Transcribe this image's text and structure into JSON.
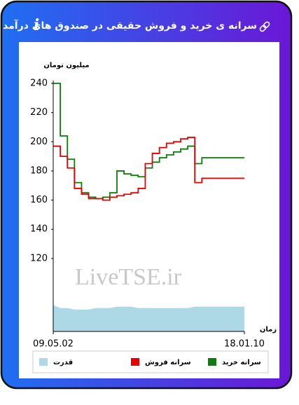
{
  "chart_data": {
    "type": "line",
    "title": "سرانه ی خرید و فروش حقیقی در صندوق های درآمد ثابت",
    "y_label": "میلیون تومان",
    "x_label": "زمان",
    "watermark": "LiveTSE.ir",
    "categories": [
      "09.05.02",
      null,
      null,
      null,
      null,
      null,
      null,
      null,
      null,
      null,
      null,
      null,
      null,
      null,
      null,
      null,
      null,
      null,
      null,
      null,
      null,
      null,
      null,
      null,
      null,
      null,
      null,
      "18.01.10"
    ],
    "ylim": [
      70,
      240
    ],
    "yticks": [
      120,
      140,
      160,
      180,
      200,
      220,
      240
    ],
    "series": [
      {
        "name": "سرانه خرید",
        "color": "#0a7d0a",
        "kind": "line",
        "values": [
          240,
          204,
          188,
          172,
          165,
          162,
          161,
          162,
          165,
          180,
          178,
          177,
          176,
          182,
          186,
          189,
          191,
          193,
          195,
          197,
          185,
          189,
          189,
          189,
          189,
          189,
          189,
          189
        ]
      },
      {
        "name": "سرانه فروش",
        "color": "#e80000",
        "kind": "line",
        "values": [
          197,
          190,
          182,
          168,
          164,
          161,
          161,
          160,
          162,
          163,
          164,
          165,
          168,
          185,
          192,
          196,
          199,
          200,
          202,
          203,
          172,
          175,
          175,
          175,
          175,
          175,
          175,
          175
        ]
      },
      {
        "name": "قدرت",
        "color": "#add8e6",
        "kind": "area",
        "values": [
          88,
          86,
          86,
          85,
          85,
          85,
          86,
          86,
          86,
          87,
          87,
          87,
          86,
          86,
          86,
          86,
          86,
          86,
          86,
          86,
          87,
          87,
          87,
          87,
          87,
          87,
          87,
          87
        ]
      }
    ]
  }
}
